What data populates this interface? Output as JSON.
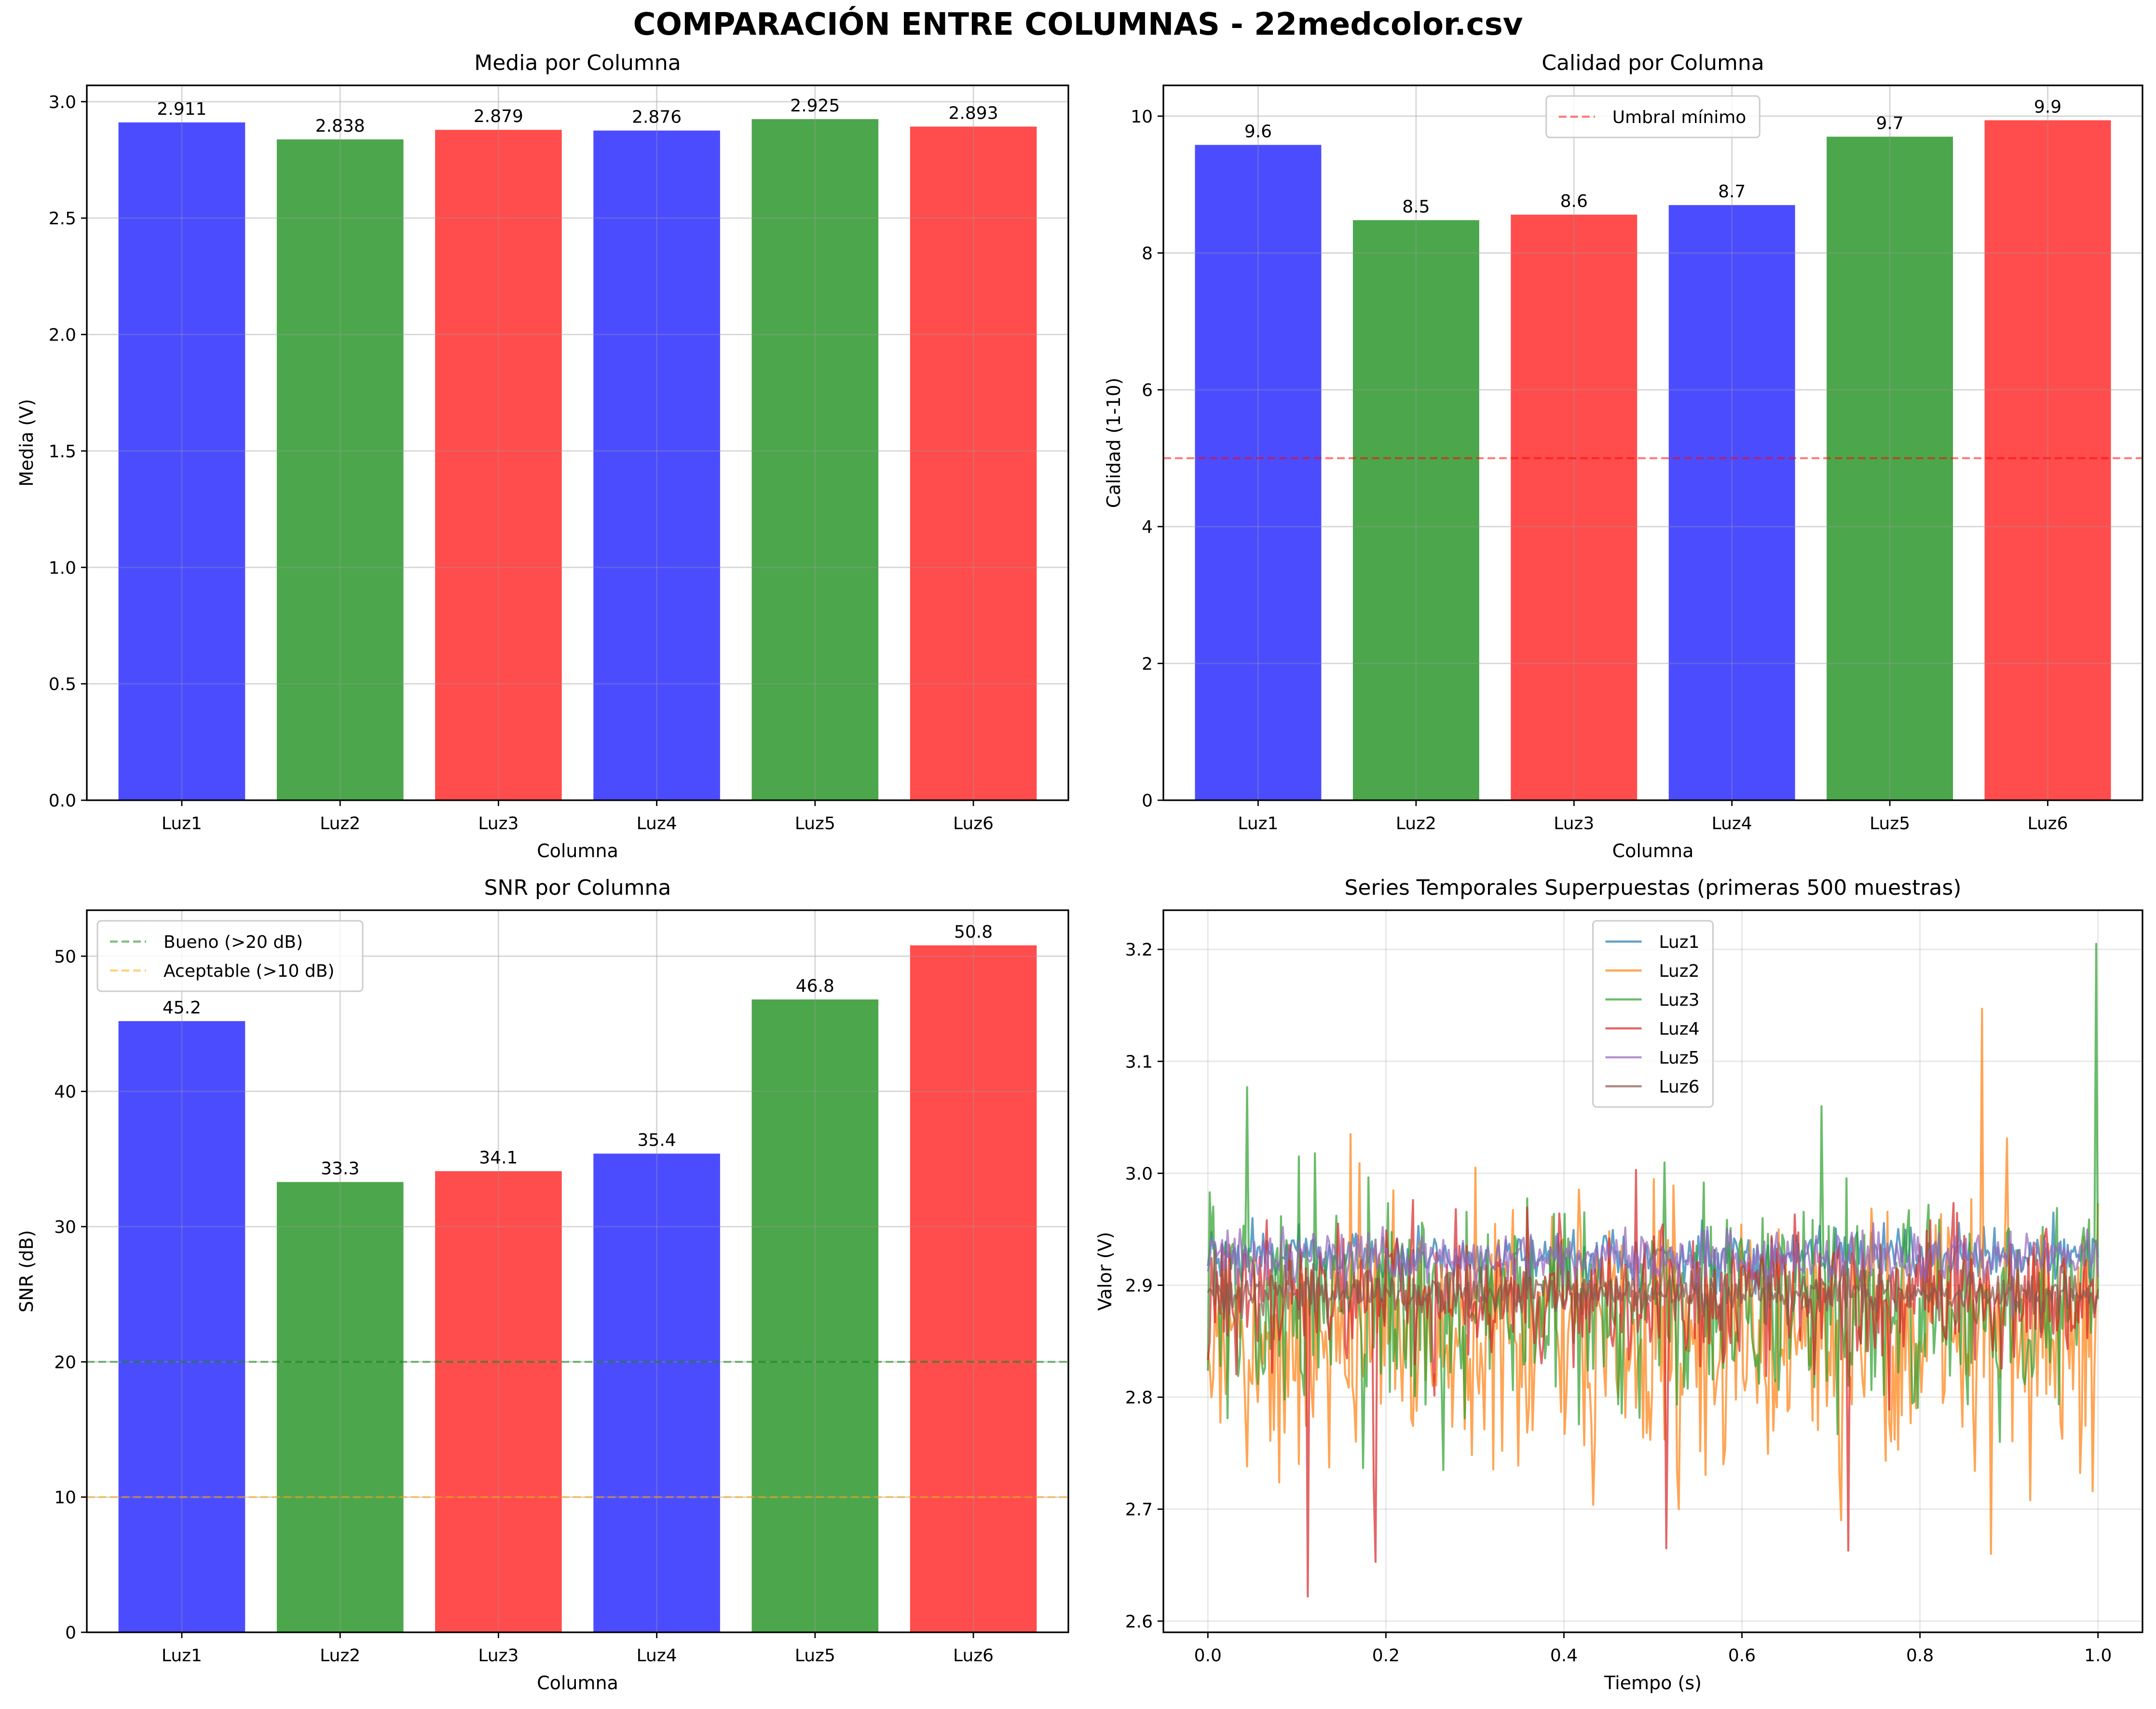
{
  "figure": {
    "suptitle": "COMPARACIÓN ENTRE COLUMNAS - 22medcolor.csv"
  },
  "colors": {
    "bar_cycle": [
      "#0000ff",
      "#008000",
      "#ff0000"
    ],
    "bar_alpha": 0.7
  },
  "chart_data": [
    {
      "id": "media",
      "type": "bar",
      "title": "Media por Columna",
      "xlabel": "Columna",
      "ylabel": "Media (V)",
      "categories": [
        "Luz1",
        "Luz2",
        "Luz3",
        "Luz4",
        "Luz5",
        "Luz6"
      ],
      "values": [
        2.911,
        2.838,
        2.879,
        2.876,
        2.925,
        2.893
      ],
      "value_labels": [
        "2.911",
        "2.838",
        "2.879",
        "2.876",
        "2.925",
        "2.893"
      ],
      "bar_colors": [
        "#0000ff",
        "#008000",
        "#ff0000",
        "#0000ff",
        "#008000",
        "#ff0000"
      ],
      "ylim": [
        0,
        3.07
      ],
      "yticks": [
        0.0,
        0.5,
        1.0,
        1.5,
        2.0,
        2.5,
        3.0
      ],
      "ytick_labels": [
        "0.0",
        "0.5",
        "1.0",
        "1.5",
        "2.0",
        "2.5",
        "3.0"
      ],
      "grid": true,
      "hlines": [],
      "legend": null
    },
    {
      "id": "calidad",
      "type": "bar",
      "title": "Calidad por Columna",
      "xlabel": "Columna",
      "ylabel": "Calidad (1-10)",
      "categories": [
        "Luz1",
        "Luz2",
        "Luz3",
        "Luz4",
        "Luz5",
        "Luz6"
      ],
      "values": [
        9.58,
        8.48,
        8.56,
        8.7,
        9.7,
        9.94
      ],
      "value_labels": [
        "9.6",
        "8.5",
        "8.6",
        "8.7",
        "9.7",
        "9.9"
      ],
      "bar_colors": [
        "#0000ff",
        "#008000",
        "#ff0000",
        "#0000ff",
        "#008000",
        "#ff0000"
      ],
      "ylim": [
        0,
        10.45
      ],
      "yticks": [
        0,
        2,
        4,
        6,
        8,
        10
      ],
      "ytick_labels": [
        "0",
        "2",
        "4",
        "6",
        "8",
        "10"
      ],
      "grid": true,
      "hlines": [
        {
          "y": 5,
          "color": "#ff0000",
          "alpha": 0.5,
          "label": "Umbral mínimo"
        }
      ],
      "legend": {
        "placement": "upper-center",
        "entries": [
          "Umbral mínimo"
        ]
      }
    },
    {
      "id": "snr",
      "type": "bar",
      "title": "SNR por Columna",
      "xlabel": "Columna",
      "ylabel": "SNR (dB)",
      "categories": [
        "Luz1",
        "Luz2",
        "Luz3",
        "Luz4",
        "Luz5",
        "Luz6"
      ],
      "values": [
        45.2,
        33.3,
        34.1,
        35.4,
        46.8,
        50.8
      ],
      "value_labels": [
        "45.2",
        "33.3",
        "34.1",
        "35.4",
        "46.8",
        "50.8"
      ],
      "bar_colors": [
        "#0000ff",
        "#008000",
        "#ff0000",
        "#0000ff",
        "#008000",
        "#ff0000"
      ],
      "ylim": [
        0,
        53.4
      ],
      "yticks": [
        0,
        10,
        20,
        30,
        40,
        50
      ],
      "ytick_labels": [
        "0",
        "10",
        "20",
        "30",
        "40",
        "50"
      ],
      "grid": true,
      "hlines": [
        {
          "y": 20,
          "color": "#008000",
          "alpha": 0.5,
          "label": "Bueno (>20 dB)"
        },
        {
          "y": 10,
          "color": "#ffa500",
          "alpha": 0.5,
          "label": "Aceptable (>10 dB)"
        }
      ],
      "legend": {
        "placement": "upper-left",
        "entries": [
          "Bueno (>20 dB)",
          "Aceptable (>10 dB)"
        ]
      }
    },
    {
      "id": "series",
      "type": "line",
      "title": "Series Temporales Superpuestas (primeras 500 muestras)",
      "xlabel": "Tiempo (s)",
      "ylabel": "Valor (V)",
      "xlim": [
        -0.05,
        1.05
      ],
      "ylim": [
        2.59,
        3.235
      ],
      "xticks": [
        0.0,
        0.2,
        0.4,
        0.6,
        0.8,
        1.0
      ],
      "xtick_labels": [
        "0.0",
        "0.2",
        "0.4",
        "0.6",
        "0.8",
        "1.0"
      ],
      "yticks": [
        2.6,
        2.7,
        2.8,
        2.9,
        3.0,
        3.1,
        3.2
      ],
      "ytick_labels": [
        "2.6",
        "2.7",
        "2.8",
        "2.9",
        "3.0",
        "3.1",
        "3.2"
      ],
      "grid": true,
      "samples": 500,
      "x_range": [
        0.0,
        1.0
      ],
      "legend": {
        "placement": "upper-center",
        "entries": [
          "Luz1",
          "Luz2",
          "Luz3",
          "Luz4",
          "Luz5",
          "Luz6"
        ]
      },
      "series": [
        {
          "name": "Luz1",
          "color": "#1f77b4",
          "mean": 2.925,
          "spread": 0.012,
          "spikes": [
            [
              0.05,
              2.96
            ],
            [
              0.95,
              2.965
            ]
          ]
        },
        {
          "name": "Luz2",
          "color": "#ff7f0e",
          "mean": 2.855,
          "spread": 0.055,
          "spikes": [
            [
              0.0,
              2.84
            ],
            [
              0.005,
              2.8
            ],
            [
              0.16,
              3.035
            ],
            [
              0.3,
              3.005
            ],
            [
              0.53,
              2.7
            ],
            [
              0.87,
              3.147
            ],
            [
              0.88,
              2.66
            ],
            [
              0.995,
              2.825
            ]
          ]
        },
        {
          "name": "Luz3",
          "color": "#2ca02c",
          "mean": 2.885,
          "spread": 0.045,
          "spikes": [
            [
              0.045,
              3.077
            ],
            [
              0.003,
              2.983
            ],
            [
              0.69,
              3.06
            ],
            [
              0.998,
              3.205
            ],
            [
              0.89,
              2.76
            ]
          ]
        },
        {
          "name": "Luz4",
          "color": "#d62728",
          "mean": 2.895,
          "spread": 0.03,
          "spikes": [
            [
              0.112,
              2.622
            ],
            [
              0.188,
              2.653
            ],
            [
              0.186,
              2.72
            ],
            [
              0.515,
              2.665
            ],
            [
              0.72,
              2.663
            ],
            [
              0.48,
              3.003
            ]
          ]
        },
        {
          "name": "Luz5",
          "color": "#9467bd",
          "mean": 2.925,
          "spread": 0.012,
          "spikes": []
        },
        {
          "name": "Luz6",
          "color": "#8c564b",
          "mean": 2.893,
          "spread": 0.01,
          "spikes": []
        }
      ]
    }
  ]
}
